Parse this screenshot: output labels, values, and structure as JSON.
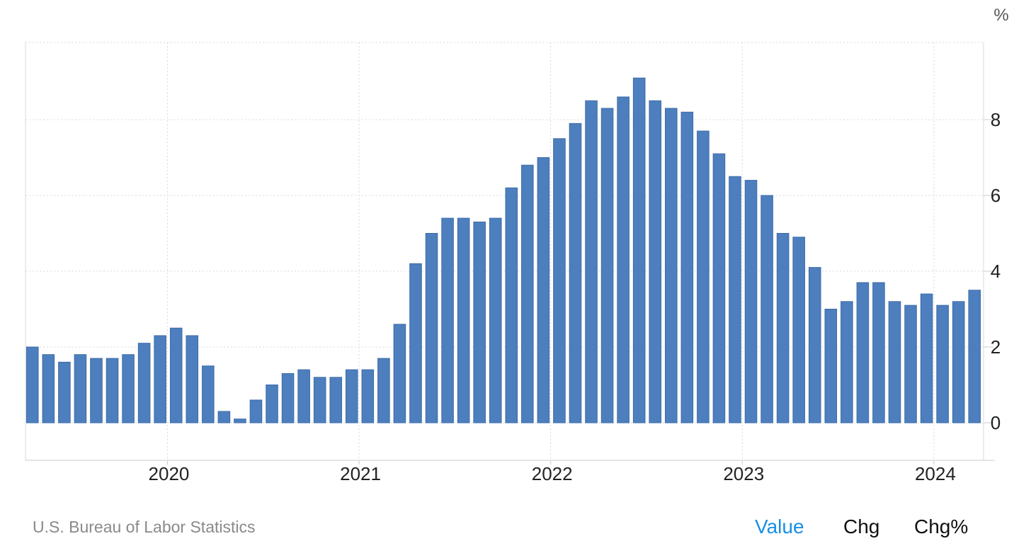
{
  "chart_data": {
    "type": "bar",
    "unit_label": "%",
    "ylim": [
      -1,
      10
    ],
    "yticks": [
      0,
      2,
      4,
      6,
      8
    ],
    "xticks": [
      {
        "label": "2020",
        "date": "2020-01"
      },
      {
        "label": "2021",
        "date": "2021-01"
      },
      {
        "label": "2022",
        "date": "2022-01"
      },
      {
        "label": "2023",
        "date": "2023-01"
      },
      {
        "label": "2024",
        "date": "2024-01"
      }
    ],
    "grid": true,
    "bar_color": "#4d7fbf",
    "categories": [
      "2019-04",
      "2019-05",
      "2019-06",
      "2019-07",
      "2019-08",
      "2019-09",
      "2019-10",
      "2019-11",
      "2019-12",
      "2020-01",
      "2020-02",
      "2020-03",
      "2020-04",
      "2020-05",
      "2020-06",
      "2020-07",
      "2020-08",
      "2020-09",
      "2020-10",
      "2020-11",
      "2020-12",
      "2021-01",
      "2021-02",
      "2021-03",
      "2021-04",
      "2021-05",
      "2021-06",
      "2021-07",
      "2021-08",
      "2021-09",
      "2021-10",
      "2021-11",
      "2021-12",
      "2022-01",
      "2022-02",
      "2022-03",
      "2022-04",
      "2022-05",
      "2022-06",
      "2022-07",
      "2022-08",
      "2022-09",
      "2022-10",
      "2022-11",
      "2022-12",
      "2023-01",
      "2023-02",
      "2023-03",
      "2023-04",
      "2023-05",
      "2023-06",
      "2023-07",
      "2023-08",
      "2023-09",
      "2023-10",
      "2023-11",
      "2023-12",
      "2024-01",
      "2024-02",
      "2024-03"
    ],
    "values": [
      2.0,
      1.8,
      1.6,
      1.8,
      1.7,
      1.7,
      1.8,
      2.1,
      2.3,
      2.5,
      2.3,
      1.5,
      0.3,
      0.1,
      0.6,
      1.0,
      1.3,
      1.4,
      1.2,
      1.2,
      1.4,
      1.4,
      1.7,
      2.6,
      4.2,
      5.0,
      5.4,
      5.4,
      5.3,
      5.4,
      6.2,
      6.8,
      7.0,
      7.5,
      7.9,
      8.5,
      8.3,
      8.6,
      9.1,
      8.5,
      8.3,
      8.2,
      7.7,
      7.1,
      6.5,
      6.4,
      6.0,
      5.0,
      4.9,
      4.1,
      3.0,
      3.2,
      3.7,
      3.7,
      3.2,
      3.1,
      3.4,
      3.1,
      3.2,
      3.5
    ]
  },
  "footer": {
    "source": "U.S. Bureau of Labor Statistics",
    "tabs": [
      {
        "label": "Value",
        "active": true
      },
      {
        "label": "Chg",
        "active": false
      },
      {
        "label": "Chg%",
        "active": false
      }
    ]
  },
  "colors": {
    "accent": "#1a8fe3",
    "bar": "#4d7fbf",
    "bar_stroke": "#3e6ba6",
    "grid": "#d9d9d9",
    "axis_text": "#222222",
    "source_text": "#8a8a8a"
  }
}
